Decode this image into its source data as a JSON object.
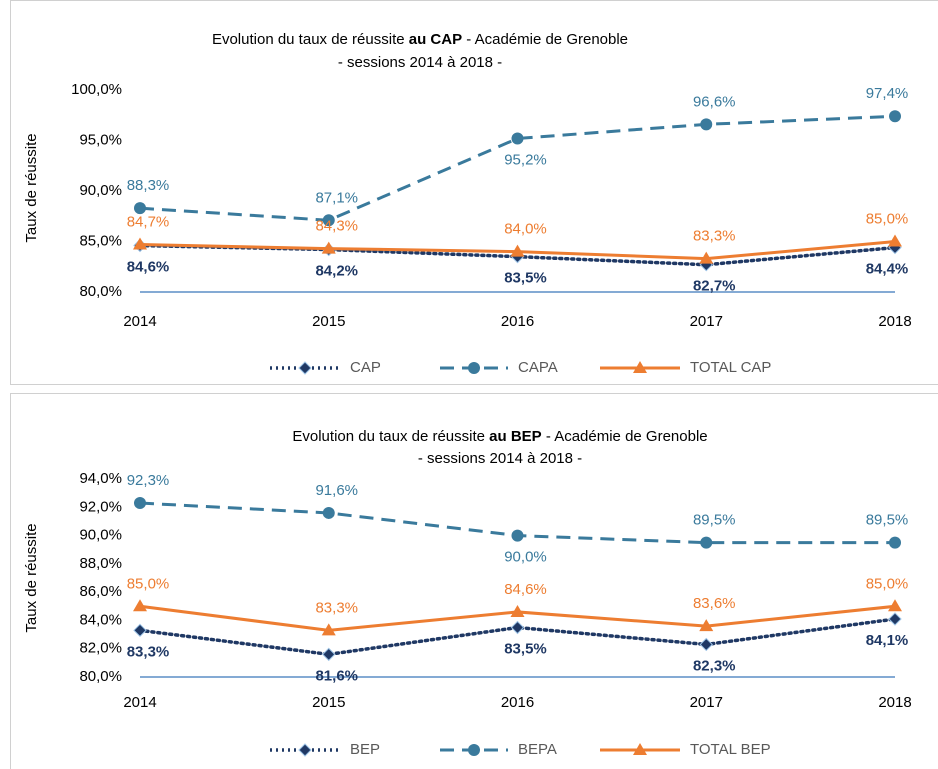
{
  "chart_data": [
    {
      "type": "line",
      "title": [
        "Evolution du taux de réussite",
        "au CAP",
        "- Académie de Grenoble"
      ],
      "subtitle": "- sessions 2014 à 2018 -",
      "y_label": "Taux de réussite",
      "categories": [
        "2014",
        "2015",
        "2016",
        "2017",
        "2018"
      ],
      "ylim": [
        80,
        100
      ],
      "yticks": [
        {
          "value": 80,
          "label": "80,0%"
        },
        {
          "value": 85,
          "label": "85,0%"
        },
        {
          "value": 90,
          "label": "90,0%"
        },
        {
          "value": 95,
          "label": "95,0%"
        },
        {
          "value": 100,
          "label": "100,0%"
        }
      ],
      "series": [
        {
          "name": "CAP",
          "color": "#1f3864",
          "marker": "diamond",
          "dash": "dotted",
          "values": [
            84.6,
            84.2,
            83.5,
            82.7,
            84.4
          ],
          "value_labels": [
            "84,6%",
            "84,2%",
            "83,5%",
            "82,7%",
            "84,4%"
          ]
        },
        {
          "name": "CAPA",
          "color": "#3a7a9c",
          "marker": "circle",
          "dash": "dashed",
          "values": [
            88.3,
            87.1,
            95.2,
            96.6,
            97.4
          ],
          "value_labels": [
            "88,3%",
            "87,1%",
            "95,2%",
            "96,6%",
            "97,4%"
          ]
        },
        {
          "name": "TOTAL CAP",
          "color": "#ed7d31",
          "marker": "triangle",
          "dash": "solid",
          "values": [
            84.7,
            84.3,
            84.0,
            83.3,
            85.0
          ],
          "value_labels": [
            "84,7%",
            "84,3%",
            "84,0%",
            "83,3%",
            "85,0%"
          ]
        }
      ]
    },
    {
      "type": "line",
      "title": [
        "Evolution du taux de réussite",
        "au BEP",
        "- Académie de Grenoble"
      ],
      "subtitle": "- sessions 2014 à 2018 -",
      "y_label": "Taux de réussite",
      "categories": [
        "2014",
        "2015",
        "2016",
        "2017",
        "2018"
      ],
      "ylim": [
        80,
        94
      ],
      "yticks": [
        {
          "value": 80,
          "label": "80,0%"
        },
        {
          "value": 82,
          "label": "82,0%"
        },
        {
          "value": 84,
          "label": "84,0%"
        },
        {
          "value": 86,
          "label": "86,0%"
        },
        {
          "value": 88,
          "label": "88,0%"
        },
        {
          "value": 90,
          "label": "90,0%"
        },
        {
          "value": 92,
          "label": "92,0%"
        },
        {
          "value": 94,
          "label": "94,0%"
        }
      ],
      "series": [
        {
          "name": "BEP",
          "color": "#1f3864",
          "marker": "diamond",
          "dash": "dotted",
          "values": [
            83.3,
            81.6,
            83.5,
            82.3,
            84.1
          ],
          "value_labels": [
            "83,3%",
            "81,6%",
            "83,5%",
            "82,3%",
            "84,1%"
          ]
        },
        {
          "name": "BEPA",
          "color": "#3a7a9c",
          "marker": "circle",
          "dash": "dashed",
          "values": [
            92.3,
            91.6,
            90.0,
            89.5,
            89.5
          ],
          "value_labels": [
            "92,3%",
            "91,6%",
            "90,0%",
            "89,5%",
            "89,5%"
          ]
        },
        {
          "name": "TOTAL BEP",
          "color": "#ed7d31",
          "marker": "triangle",
          "dash": "solid",
          "values": [
            85.0,
            83.3,
            84.6,
            83.6,
            85.0
          ],
          "value_labels": [
            "85,0%",
            "83,3%",
            "84,6%",
            "83,6%",
            "85,0%"
          ]
        }
      ]
    }
  ]
}
